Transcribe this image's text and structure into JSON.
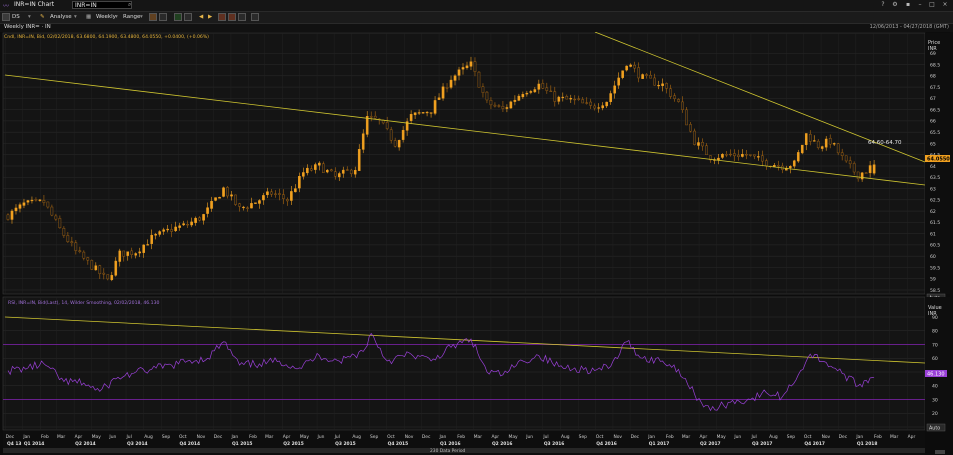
{
  "titlebar": {
    "tab_title": "INR=IN Chart",
    "ric_input": "INR=IN"
  },
  "toolbar": {
    "layout_label": "DS",
    "analyse_label": "Analyse",
    "interval_label": "Weekly",
    "range_label": "Range"
  },
  "chart_header": {
    "title": "Weekly INR= · IN",
    "date_range": "12/06/2013 - 04/27/2018 (GMT)"
  },
  "price_panel": {
    "legend": "Cndl, INR=IN, Bid, 02/02/2018, 63.6800, 64.1900, 63.4800, 64.0550, +0.0400, (+0.06%)",
    "axis_title": "Price",
    "axis_unit": "INR",
    "annotation": "64.60-64.70",
    "last_price": "64.0550",
    "auto_label": "Auto",
    "y_ticks": [
      "69",
      "68.5",
      "68",
      "67.5",
      "67",
      "66.5",
      "66",
      "65.5",
      "65",
      "64.5",
      "64",
      "63.5",
      "63",
      "62.5",
      "62",
      "61.5",
      "61",
      "60.5",
      "60",
      "59.5",
      "59",
      "58.5"
    ]
  },
  "rsi_panel": {
    "legend": "RSI, INR=IN, Bid(Last), 14, Wilder Smoothing, 02/02/2018, 46.130",
    "axis_title": "Value",
    "axis_unit": "INR",
    "last_value": "46.130",
    "auto_label": "Auto",
    "y_ticks": [
      "90",
      "80",
      "70",
      "60",
      "50",
      "40",
      "30",
      "20",
      "10"
    ]
  },
  "x_axis": {
    "months": [
      "Dec",
      "Jan",
      "Feb",
      "Mar",
      "Apr",
      "May",
      "Jun",
      "Jul",
      "Aug",
      "Sep",
      "Oct",
      "Nov",
      "Dec",
      "Jan",
      "Feb",
      "Mar",
      "Apr",
      "May",
      "Jun",
      "Jul",
      "Aug",
      "Sep",
      "Oct",
      "Nov",
      "Dec",
      "Jan",
      "Feb",
      "Mar",
      "Apr",
      "May",
      "Jun",
      "Jul",
      "Aug",
      "Sep",
      "Oct",
      "Nov",
      "Dec",
      "Jan",
      "Feb",
      "Mar",
      "Apr",
      "May",
      "Jun",
      "Jul",
      "Aug",
      "Sep",
      "Oct",
      "Nov",
      "Dec",
      "Jan",
      "Feb",
      "Mar",
      "Apr"
    ],
    "quarters": [
      "Q4 13",
      "Q1 2014",
      "Q2 2014",
      "Q3 2014",
      "Q4 2014",
      "Q1 2015",
      "Q2 2015",
      "Q3 2015",
      "Q4 2015",
      "Q1 2016",
      "Q2 2016",
      "Q3 2016",
      "Q4 2016",
      "Q1 2017",
      "Q2 2017",
      "Q3 2017",
      "Q4 2017",
      "Q1 2018"
    ],
    "footer": "230 Data Period"
  },
  "colors": {
    "bull": "#f0a020",
    "bear": "#b06a10",
    "trend": "#d8d030",
    "rsi": "#9040c8",
    "rsi_bands": "#8020b0",
    "last_price_bg": "#f0a020"
  },
  "chart_data": [
    {
      "type": "candlestick",
      "title": "Weekly INR= · IN",
      "x_range": [
        "2013-12-06",
        "2018-04-27"
      ],
      "ylim": [
        58.5,
        69.5
      ],
      "close_points": [
        [
          "2013-12-06",
          61.8
        ],
        [
          "2014-01-03",
          62.3
        ],
        [
          "2014-02-07",
          62.4
        ],
        [
          "2014-03-07",
          61.2
        ],
        [
          "2014-04-04",
          60.2
        ],
        [
          "2014-05-09",
          59.4
        ],
        [
          "2014-05-30",
          58.9
        ],
        [
          "2014-06-20",
          60.1
        ],
        [
          "2014-07-18",
          60.2
        ],
        [
          "2014-08-15",
          60.8
        ],
        [
          "2014-09-19",
          61.2
        ],
        [
          "2014-10-17",
          61.4
        ],
        [
          "2014-11-14",
          61.8
        ],
        [
          "2014-12-19",
          63.0
        ],
        [
          "2015-01-16",
          62.1
        ],
        [
          "2015-02-13",
          62.4
        ],
        [
          "2015-03-13",
          62.8
        ],
        [
          "2015-04-10",
          62.5
        ],
        [
          "2015-05-08",
          63.7
        ],
        [
          "2015-06-05",
          64.0
        ],
        [
          "2015-07-03",
          63.5
        ],
        [
          "2015-08-07",
          63.9
        ],
        [
          "2015-08-28",
          66.1
        ],
        [
          "2015-09-18",
          66.0
        ],
        [
          "2015-10-16",
          65.0
        ],
        [
          "2015-11-13",
          66.2
        ],
        [
          "2015-12-18",
          66.5
        ],
        [
          "2016-01-22",
          67.9
        ],
        [
          "2016-02-26",
          68.5
        ],
        [
          "2016-03-25",
          66.8
        ],
        [
          "2016-04-22",
          66.5
        ],
        [
          "2016-05-27",
          67.3
        ],
        [
          "2016-06-24",
          67.6
        ],
        [
          "2016-07-22",
          67.0
        ],
        [
          "2016-08-26",
          66.9
        ],
        [
          "2016-09-23",
          66.6
        ],
        [
          "2016-10-21",
          66.9
        ],
        [
          "2016-11-25",
          68.6
        ],
        [
          "2016-12-23",
          67.9
        ],
        [
          "2017-01-27",
          67.6
        ],
        [
          "2017-02-24",
          66.8
        ],
        [
          "2017-03-24",
          65.1
        ],
        [
          "2017-04-21",
          64.4
        ],
        [
          "2017-05-26",
          64.5
        ],
        [
          "2017-06-23",
          64.5
        ],
        [
          "2017-07-21",
          64.2
        ],
        [
          "2017-08-25",
          64.0
        ],
        [
          "2017-09-15",
          64.1
        ],
        [
          "2017-10-06",
          65.4
        ],
        [
          "2017-10-27",
          64.9
        ],
        [
          "2017-11-17",
          65.1
        ],
        [
          "2017-12-15",
          64.1
        ],
        [
          "2018-01-05",
          63.6
        ],
        [
          "2018-01-19",
          63.8
        ],
        [
          "2018-02-02",
          64.055
        ]
      ],
      "last_bar": {
        "date": "2018-02-02",
        "open": 63.68,
        "high": 64.19,
        "low": 63.48,
        "close": 64.055,
        "change": 0.04,
        "change_pct": 0.06
      },
      "annotations": [
        "64.60-64.70"
      ]
    },
    {
      "type": "line",
      "title": "RSI, INR=IN, Bid(Last), 14, Wilder Smoothing",
      "ylim": [
        10,
        95
      ],
      "levels": [
        30,
        70
      ],
      "points": [
        [
          "2013-12-06",
          51
        ],
        [
          "2014-01-10",
          53
        ],
        [
          "2014-02-07",
          56
        ],
        [
          "2014-03-14",
          43
        ],
        [
          "2014-04-18",
          42
        ],
        [
          "2014-05-16",
          36
        ],
        [
          "2014-06-13",
          45
        ],
        [
          "2014-07-11",
          49
        ],
        [
          "2014-08-15",
          52
        ],
        [
          "2014-09-19",
          55
        ],
        [
          "2014-10-17",
          58
        ],
        [
          "2014-11-21",
          60
        ],
        [
          "2014-12-19",
          72
        ],
        [
          "2015-01-16",
          55
        ],
        [
          "2015-02-20",
          56
        ],
        [
          "2015-03-27",
          58
        ],
        [
          "2015-05-01",
          53
        ],
        [
          "2015-06-05",
          62
        ],
        [
          "2015-07-10",
          58
        ],
        [
          "2015-08-21",
          65
        ],
        [
          "2015-09-04",
          78
        ],
        [
          "2015-10-02",
          58
        ],
        [
          "2015-11-13",
          63
        ],
        [
          "2015-12-18",
          58
        ],
        [
          "2016-01-22",
          68
        ],
        [
          "2016-02-26",
          74
        ],
        [
          "2016-03-25",
          50
        ],
        [
          "2016-04-22",
          48
        ],
        [
          "2016-05-27",
          58
        ],
        [
          "2016-06-24",
          62
        ],
        [
          "2016-07-29",
          54
        ],
        [
          "2016-08-26",
          53
        ],
        [
          "2016-09-30",
          51
        ],
        [
          "2016-10-28",
          54
        ],
        [
          "2016-11-25",
          72
        ],
        [
          "2016-12-23",
          60
        ],
        [
          "2017-01-27",
          58
        ],
        [
          "2017-02-24",
          52
        ],
        [
          "2017-03-24",
          34
        ],
        [
          "2017-04-21",
          22
        ],
        [
          "2017-05-26",
          28
        ],
        [
          "2017-06-30",
          30
        ],
        [
          "2017-07-28",
          35
        ],
        [
          "2017-08-25",
          32
        ],
        [
          "2017-09-22",
          48
        ],
        [
          "2017-10-13",
          63
        ],
        [
          "2017-11-10",
          57
        ],
        [
          "2017-12-08",
          49
        ],
        [
          "2018-01-05",
          40
        ],
        [
          "2018-01-19",
          44
        ],
        [
          "2018-02-02",
          46.13
        ]
      ]
    }
  ]
}
